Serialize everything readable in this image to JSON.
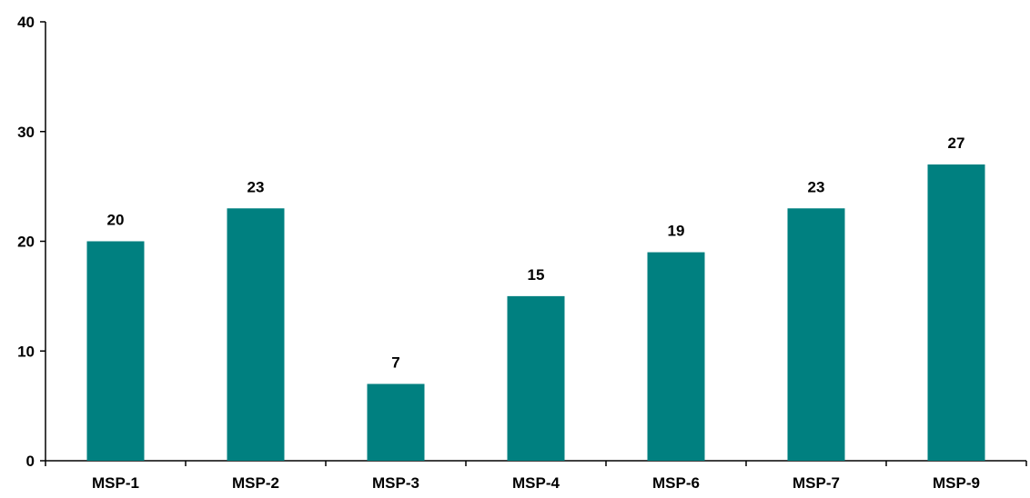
{
  "chart_data": {
    "type": "bar",
    "categories": [
      "MSP-1",
      "MSP-2",
      "MSP-3",
      "MSP-4",
      "MSP-6",
      "MSP-7",
      "MSP-9"
    ],
    "values": [
      20,
      23,
      7,
      15,
      19,
      23,
      27
    ],
    "data_labels": [
      "20",
      "23",
      "7",
      "15",
      "19",
      "23",
      "27"
    ],
    "yticks": [
      0,
      10,
      20,
      30,
      40
    ],
    "ylim": [
      0,
      40
    ],
    "title": "",
    "xlabel": "",
    "ylabel": "",
    "grid": false,
    "legend": "none",
    "bar_color": "#008080"
  }
}
